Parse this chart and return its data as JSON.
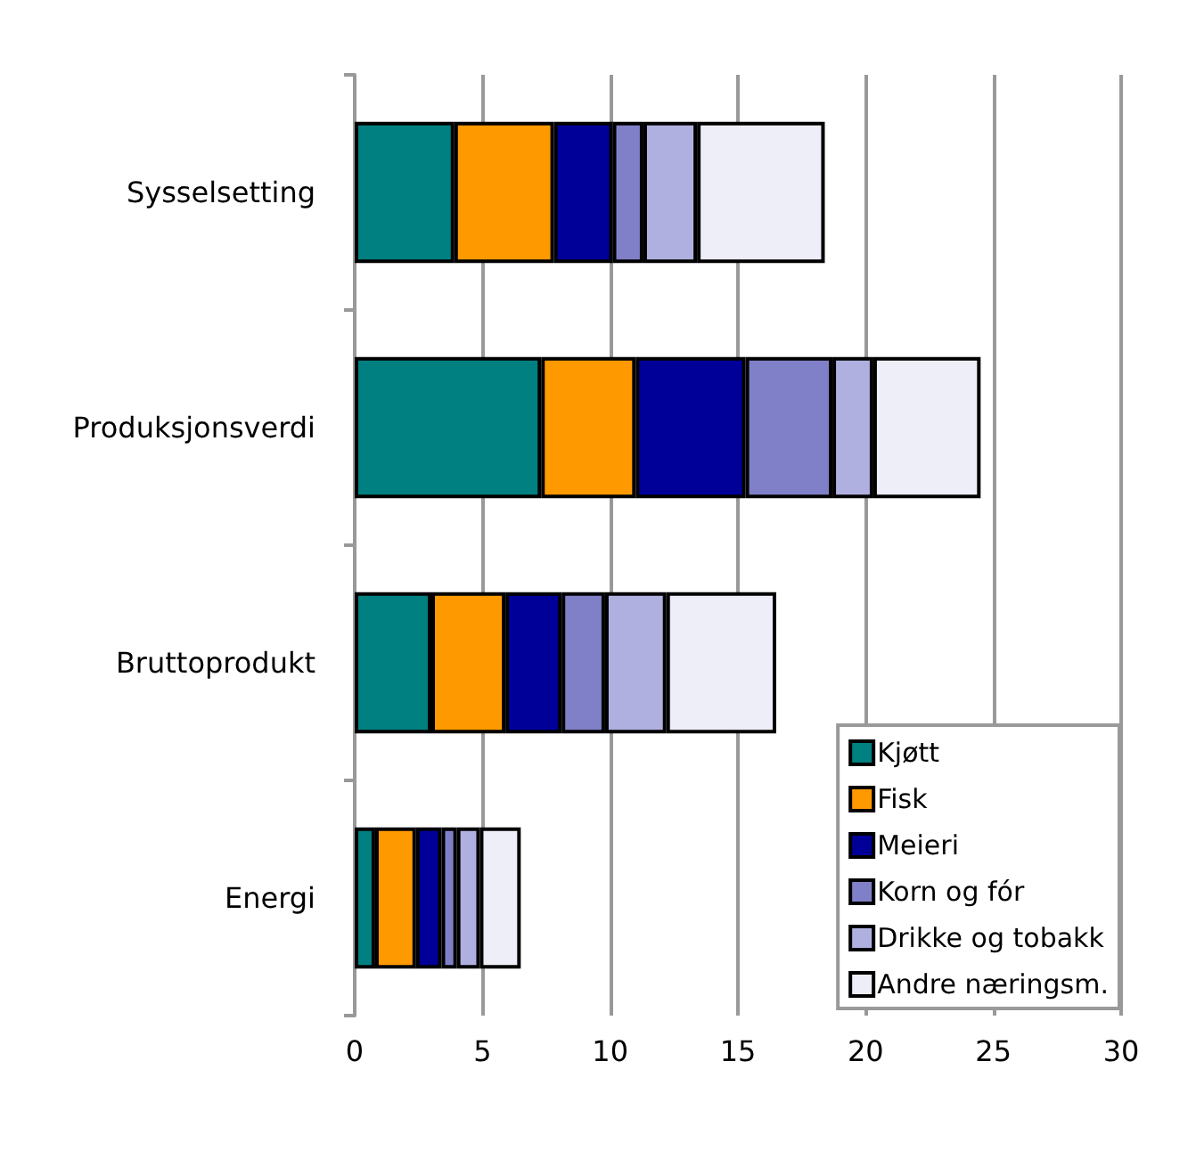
{
  "chart_data": {
    "type": "bar",
    "orientation": "horizontal",
    "stacked": true,
    "categories": [
      "Sysselsetting",
      "Produksjonsverdi",
      "Bruttoprodukt",
      "Energi"
    ],
    "series": [
      {
        "name": "Kjøtt",
        "color": "#008080",
        "values": [
          3.9,
          7.3,
          3.0,
          0.8
        ]
      },
      {
        "name": "Fisk",
        "color": "#ff9900",
        "values": [
          3.9,
          3.7,
          2.9,
          1.6
        ]
      },
      {
        "name": "Meieri",
        "color": "#000099",
        "values": [
          2.3,
          4.3,
          2.2,
          1.0
        ]
      },
      {
        "name": "Korn og fór",
        "color": "#8080c8",
        "values": [
          1.2,
          3.4,
          1.7,
          0.6
        ]
      },
      {
        "name": "Drikke og tobakk",
        "color": "#b0b0e0",
        "values": [
          2.1,
          1.6,
          2.4,
          0.9
        ]
      },
      {
        "name": "Andre næringsm.",
        "color": "#eeeef8",
        "values": [
          5.0,
          4.2,
          4.3,
          1.6
        ]
      }
    ],
    "xlim": [
      0,
      30
    ],
    "xticks": [
      0,
      5,
      10,
      15,
      20,
      25,
      30
    ],
    "grid": "x",
    "legend": "bottom right"
  }
}
